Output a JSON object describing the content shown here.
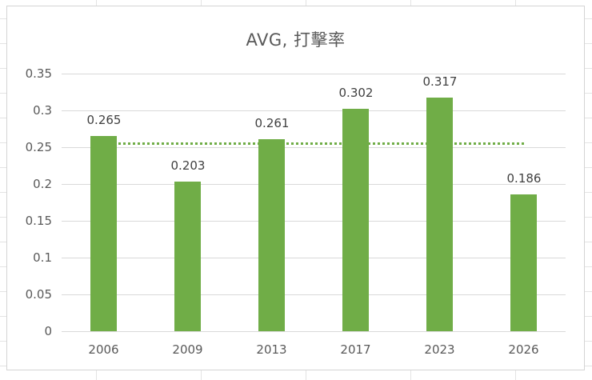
{
  "chart_data": {
    "type": "bar",
    "title": "AVG, 打擊率",
    "xlabel": "",
    "ylabel": "",
    "categories": [
      "2006",
      "2009",
      "2013",
      "2017",
      "2023",
      "2026"
    ],
    "values": [
      0.265,
      0.203,
      0.261,
      0.302,
      0.317,
      0.186
    ],
    "data_labels": [
      "0.265",
      "0.203",
      "0.261",
      "0.302",
      "0.317",
      "0.186"
    ],
    "ylim": [
      0,
      0.35
    ],
    "yticks": [
      0,
      0.05,
      0.1,
      0.15,
      0.2,
      0.25,
      0.3,
      0.35
    ],
    "ytick_labels": [
      "0",
      "0.05",
      "0.1",
      "0.15",
      "0.2",
      "0.25",
      "0.3",
      "0.35"
    ],
    "grid": true,
    "legend": null,
    "average_line": {
      "style": "dotted",
      "value": 0.2557
    },
    "colors": {
      "bar": "#70ad47",
      "average_line": "#70ad47",
      "gridline": "#d9d9d9",
      "text": "#595959"
    }
  }
}
